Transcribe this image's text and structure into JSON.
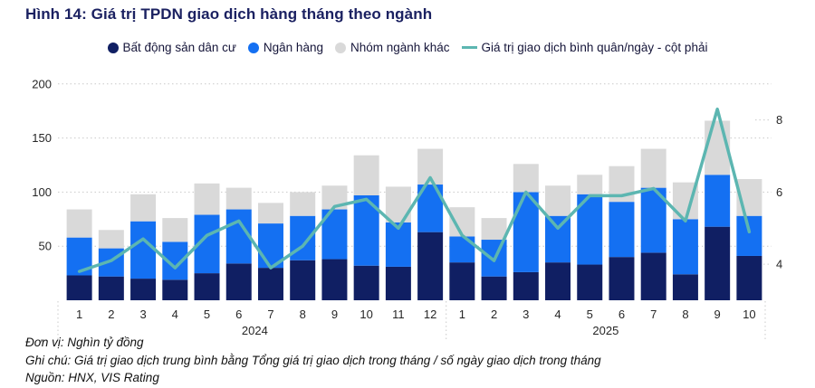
{
  "title": "Hình 14: Giá trị TPDN giao dịch hàng tháng theo ngành",
  "legend": [
    {
      "label": "Bất động sản dân cư",
      "color": "#101f63",
      "marker": "circle"
    },
    {
      "label": "Ngân hàng",
      "color": "#1470f2",
      "marker": "circle"
    },
    {
      "label": "Nhóm ngành khác",
      "color": "#d9d9d9",
      "marker": "circle"
    },
    {
      "label": "Giá trị giao dịch bình quân/ngày - cột phải",
      "color": "#5cb6b1",
      "marker": "line"
    }
  ],
  "footer": {
    "unit": "Đơn vị: Nghìn tỷ đồng",
    "note": "Ghi chú: Giá trị giao dịch trung bình bằng Tổng giá trị giao dịch trong tháng / số ngày giao dịch trong tháng",
    "source": "Nguồn: HNX, VIS Rating"
  },
  "chart_data": {
    "type": "bar",
    "subtype": "stacked-bar-with-line",
    "unit_left": "Nghìn tỷ đồng",
    "categories": [
      "1",
      "2",
      "3",
      "4",
      "5",
      "6",
      "7",
      "8",
      "9",
      "10",
      "11",
      "12",
      "1",
      "2",
      "3",
      "4",
      "5",
      "6",
      "7",
      "8",
      "9",
      "10"
    ],
    "year_groups": [
      {
        "label": "2024",
        "count": 12
      },
      {
        "label": "2025",
        "count": 10
      }
    ],
    "series": [
      {
        "name": "Bất động sản dân cư",
        "type": "bar",
        "color": "#101f63",
        "values": [
          23,
          22,
          20,
          19,
          25,
          34,
          30,
          37,
          38,
          32,
          31,
          63,
          35,
          22,
          26,
          35,
          33,
          40,
          44,
          24,
          68,
          41
        ]
      },
      {
        "name": "Ngân hàng",
        "type": "bar",
        "color": "#1470f2",
        "values": [
          35,
          26,
          53,
          35,
          54,
          50,
          41,
          41,
          46,
          65,
          41,
          44,
          24,
          34,
          74,
          43,
          65,
          51,
          60,
          51,
          48,
          37
        ]
      },
      {
        "name": "Nhóm ngành khác",
        "type": "bar",
        "color": "#d9d9d9",
        "values": [
          26,
          17,
          25,
          22,
          29,
          20,
          19,
          22,
          22,
          37,
          33,
          33,
          27,
          20,
          26,
          28,
          18,
          33,
          36,
          34,
          50,
          34
        ]
      },
      {
        "name": "Giá trị giao dịch bình quân/ngày - cột phải",
        "type": "line",
        "axis": "right",
        "color": "#5cb6b1",
        "values": [
          3.8,
          4.1,
          4.7,
          3.9,
          4.8,
          5.2,
          3.9,
          4.5,
          5.6,
          5.8,
          5.0,
          6.4,
          4.8,
          4.1,
          6.0,
          5.0,
          5.9,
          5.9,
          6.1,
          5.2,
          8.3,
          4.9
        ]
      }
    ],
    "bar_totals": [
      84,
      65,
      98,
      76,
      108,
      104,
      90,
      100,
      106,
      134,
      105,
      140,
      86,
      76,
      126,
      106,
      116,
      124,
      140,
      109,
      166,
      112
    ],
    "left_axis": {
      "ticks": [
        200,
        150,
        100,
        50
      ],
      "min": 0,
      "max": 200
    },
    "right_axis": {
      "ticks": [
        8,
        6,
        4
      ],
      "min": 3,
      "max": 9
    },
    "grid": "horizontal-dotted",
    "legend_position": "top"
  }
}
